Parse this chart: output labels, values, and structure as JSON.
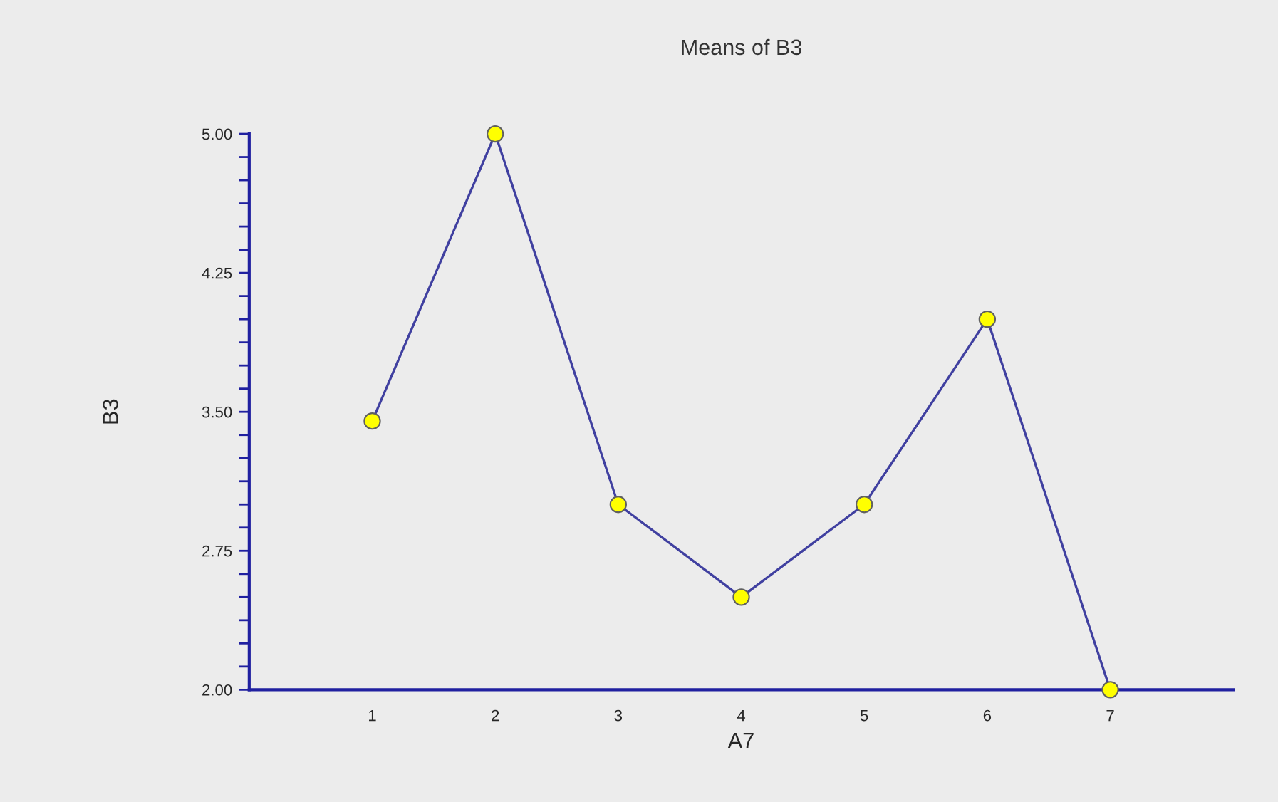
{
  "chart_data": {
    "type": "line",
    "title": "Means of B3",
    "xlabel": "A7",
    "ylabel": "B3",
    "x": [
      1,
      2,
      3,
      4,
      5,
      6,
      7
    ],
    "series": [
      {
        "color": "#4040a0",
        "values": [
          3.45,
          5.0,
          3.0,
          2.5,
          3.0,
          4.0,
          2.0
        ]
      }
    ],
    "xlim": [
      0,
      8
    ],
    "xticks": [
      1,
      2,
      3,
      4,
      5,
      6,
      7
    ],
    "ylim": [
      2,
      5
    ],
    "yticks": [
      {
        "value": 2,
        "label": "2.00"
      },
      {
        "value": 2.125,
        "label": null
      },
      {
        "value": 2.25,
        "label": null
      },
      {
        "value": 2.375,
        "label": null
      },
      {
        "value": 2.5,
        "label": null
      },
      {
        "value": 2.625,
        "label": null
      },
      {
        "value": 2.75,
        "label": "2.75"
      },
      {
        "value": 2.875,
        "label": null
      },
      {
        "value": 3,
        "label": null
      },
      {
        "value": 3.125,
        "label": null
      },
      {
        "value": 3.25,
        "label": null
      },
      {
        "value": 3.375,
        "label": null
      },
      {
        "value": 3.5,
        "label": "3.50"
      },
      {
        "value": 3.625,
        "label": null
      },
      {
        "value": 3.75,
        "label": null
      },
      {
        "value": 3.875,
        "label": null
      },
      {
        "value": 4,
        "label": null
      },
      {
        "value": 4.125,
        "label": null
      },
      {
        "value": 4.25,
        "label": "4.25"
      },
      {
        "value": 4.375,
        "label": null
      },
      {
        "value": 4.5,
        "label": null
      },
      {
        "value": 4.625,
        "label": null
      },
      {
        "value": 4.75,
        "label": null
      },
      {
        "value": 4.875,
        "label": null
      },
      {
        "value": 5,
        "label": "5.00"
      }
    ],
    "marker": "circle",
    "line_style": "solid",
    "grid": false,
    "legend": false
  }
}
